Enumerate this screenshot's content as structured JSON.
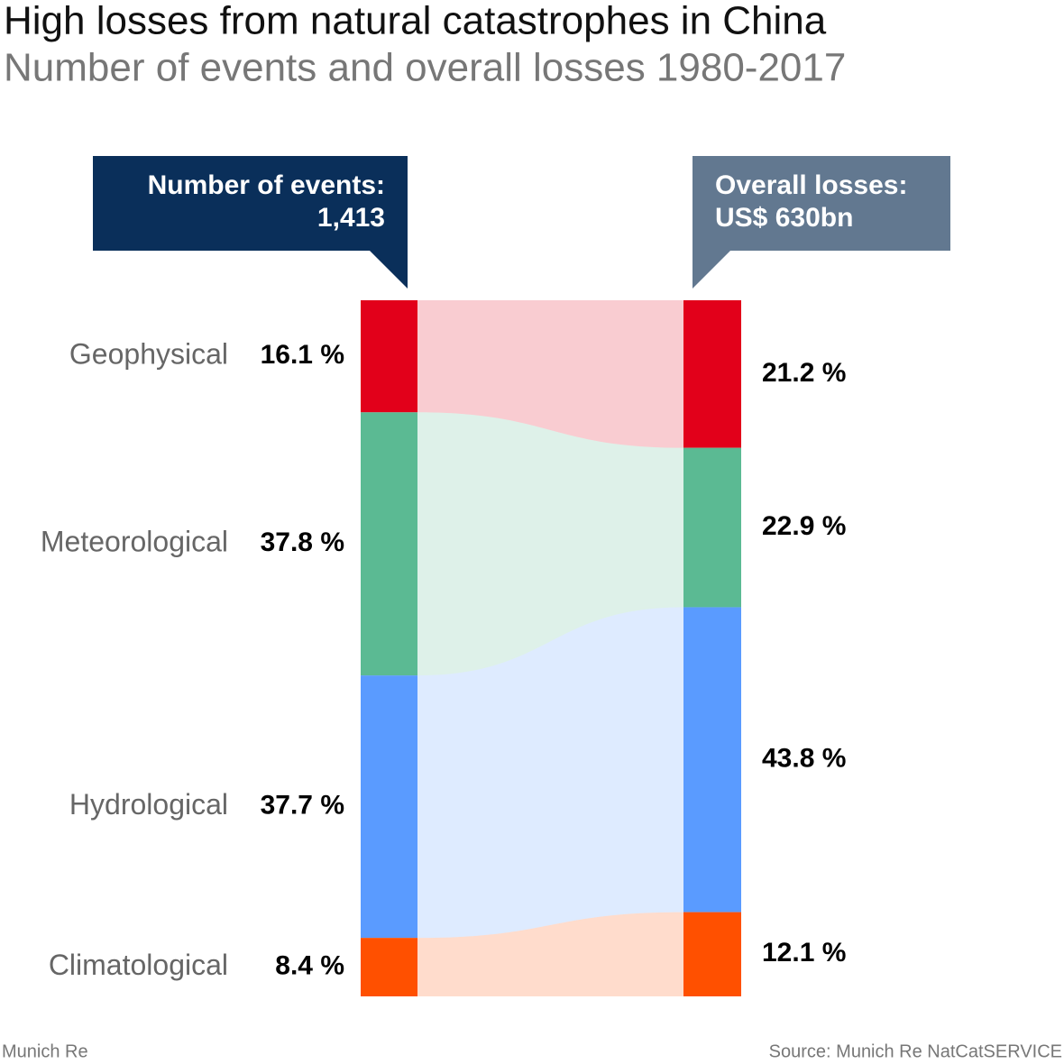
{
  "chart_data": {
    "type": "stacked_flow",
    "title": "High losses from natural catastrophes in China",
    "subtitle": "Number of events and overall losses 1980-2017",
    "columns": [
      {
        "label": "Number of events:",
        "total": "1,413",
        "color": "#0a2f5a"
      },
      {
        "label": "Overall losses:",
        "total": "US$ 630bn",
        "color": "#627890"
      }
    ],
    "series": [
      {
        "name": "Geophysical",
        "color": "#e2001a",
        "values": [
          16.1,
          21.2
        ],
        "value_labels": [
          "16.1 %",
          "21.2 %"
        ]
      },
      {
        "name": "Meteorological",
        "color": "#5bba93",
        "values": [
          37.8,
          22.9
        ],
        "value_labels": [
          "37.8 %",
          "22.9 %"
        ]
      },
      {
        "name": "Hydrological",
        "color": "#5a9bff",
        "values": [
          37.7,
          43.8
        ],
        "value_labels": [
          "37.7 %",
          "43.8 %"
        ]
      },
      {
        "name": "Climatological",
        "color": "#ff5000",
        "values": [
          8.4,
          12.1
        ],
        "value_labels": [
          "8.4 %",
          "12.1 %"
        ]
      }
    ],
    "ylim": [
      0,
      100
    ],
    "source_left": "Munich Re",
    "source_right": "Source: Munich Re NatCatSERVICE"
  }
}
